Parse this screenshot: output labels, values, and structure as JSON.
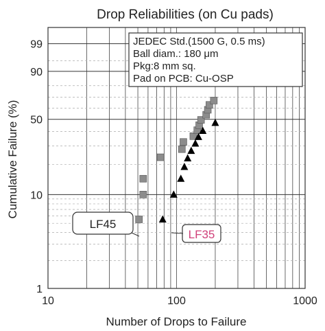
{
  "chart_data": {
    "type": "scatter",
    "title": "Drop Reliabilities (on Cu pads)",
    "xlabel": "Number of Drops to Failure",
    "ylabel": "Cumulative Failure (%)",
    "x_scale": "log",
    "y_scale": "weibull",
    "xlim": [
      10,
      1000
    ],
    "ylim": [
      1,
      99.9
    ],
    "x_ticks": [
      "10",
      "100",
      "1000"
    ],
    "y_ticks": [
      {
        "label": "1",
        "value": 1
      },
      {
        "label": "10",
        "value": 10
      },
      {
        "label": "50",
        "value": 50
      },
      {
        "label": "90",
        "value": 90
      },
      {
        "label": "99",
        "value": 99
      }
    ],
    "grid": true,
    "legend_box": [
      "JEDEC Std.(1500 G, 0.5 ms)",
      "Ball diam.: 180 μm",
      "Pkg:8 mm sq.",
      "Pad on PCB: Cu-OSP"
    ],
    "series": [
      {
        "name": "LF45",
        "marker": "square",
        "color": "#8c8c8c",
        "label_color": "#222222",
        "points": [
          {
            "x": 51,
            "y": 5.5
          },
          {
            "x": 55,
            "y": 10
          },
          {
            "x": 55,
            "y": 14.5
          },
          {
            "x": 75,
            "y": 23.5
          },
          {
            "x": 110,
            "y": 28
          },
          {
            "x": 113,
            "y": 32.5
          },
          {
            "x": 135,
            "y": 36.5
          },
          {
            "x": 145,
            "y": 41
          },
          {
            "x": 150,
            "y": 45
          },
          {
            "x": 155,
            "y": 49.5
          },
          {
            "x": 170,
            "y": 54
          },
          {
            "x": 175,
            "y": 58.5
          },
          {
            "x": 180,
            "y": 63
          },
          {
            "x": 195,
            "y": 67
          }
        ]
      },
      {
        "name": "LF35",
        "marker": "triangle",
        "color": "#000000",
        "label_color": "#d0407a",
        "points": [
          {
            "x": 78,
            "y": 5.5
          },
          {
            "x": 95,
            "y": 10
          },
          {
            "x": 108,
            "y": 14.5
          },
          {
            "x": 115,
            "y": 19
          },
          {
            "x": 122,
            "y": 23
          },
          {
            "x": 130,
            "y": 27
          },
          {
            "x": 140,
            "y": 31.5
          },
          {
            "x": 148,
            "y": 36
          },
          {
            "x": 160,
            "y": 40.5
          },
          {
            "x": 200,
            "y": 47
          }
        ]
      }
    ]
  }
}
